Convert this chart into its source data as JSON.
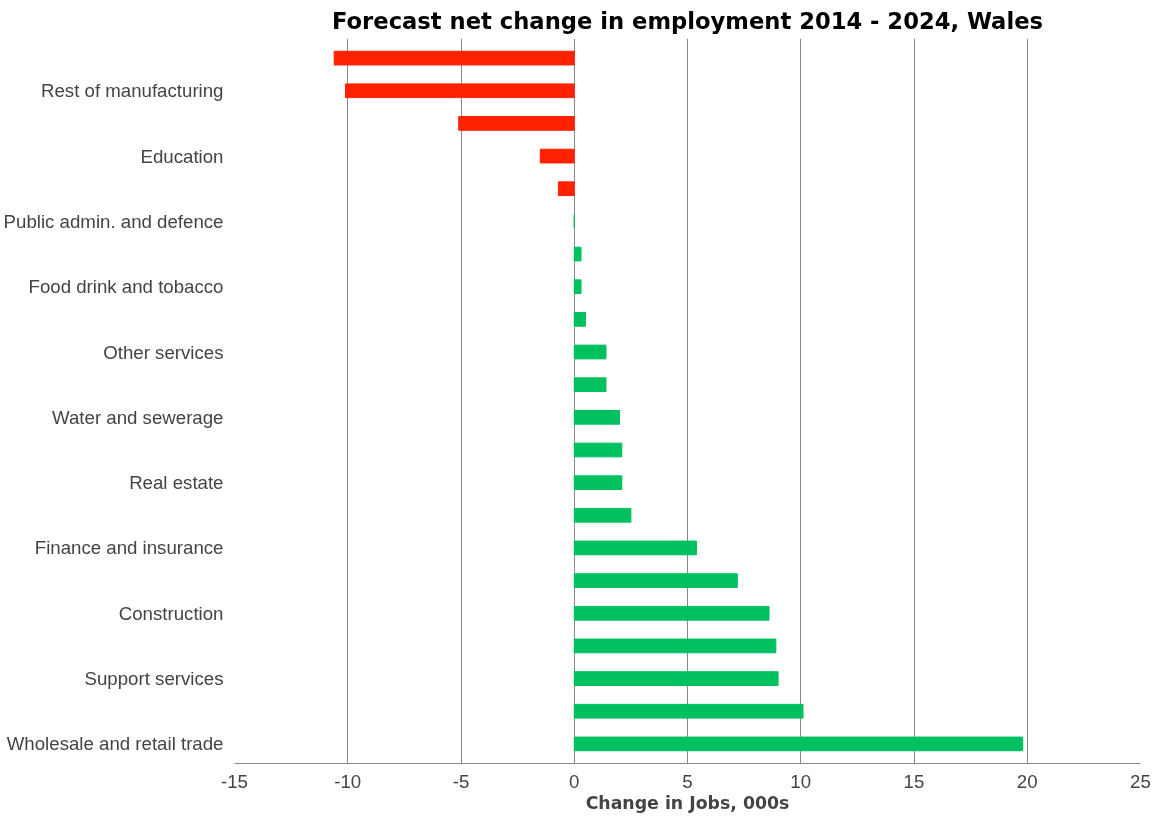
{
  "chart_data": {
    "type": "bar",
    "orientation": "horizontal",
    "title": "Forecast net change in employment 2014 - 2024, Wales",
    "xlabel": "Change in Jobs, 000s",
    "categories": [
      null,
      "Rest of manufacturing",
      null,
      "Education",
      null,
      "Public admin. and defence",
      null,
      "Food drink and tobacco",
      null,
      "Other services",
      null,
      "Water and sewerage",
      null,
      "Real estate",
      null,
      "Finance and insurance",
      null,
      "Construction",
      null,
      "Support services",
      null,
      "Wholesale and retail trade"
    ],
    "values": [
      -10.6,
      -10.1,
      -5.1,
      -1.5,
      -0.7,
      0,
      0.3,
      0.3,
      0.5,
      1.4,
      1.4,
      2.0,
      2.1,
      2.1,
      2.5,
      5.4,
      7.2,
      8.6,
      8.9,
      9.0,
      10.1,
      19.8
    ],
    "colors": [
      "#ff2200",
      "#ff2200",
      "#ff2200",
      "#ff2200",
      "#ff2200",
      "#00c060",
      "#00c060",
      "#00c060",
      "#00c060",
      "#00c060",
      "#00c060",
      "#00c060",
      "#00c060",
      "#00c060",
      "#00c060",
      "#00c060",
      "#00c060",
      "#00c060",
      "#00c060",
      "#00c060",
      "#00c060",
      "#00c060"
    ],
    "xlim": [
      -15,
      25
    ],
    "xticks": [
      -15,
      -10,
      -5,
      0,
      5,
      10,
      15,
      20,
      25
    ],
    "grid": "x"
  }
}
